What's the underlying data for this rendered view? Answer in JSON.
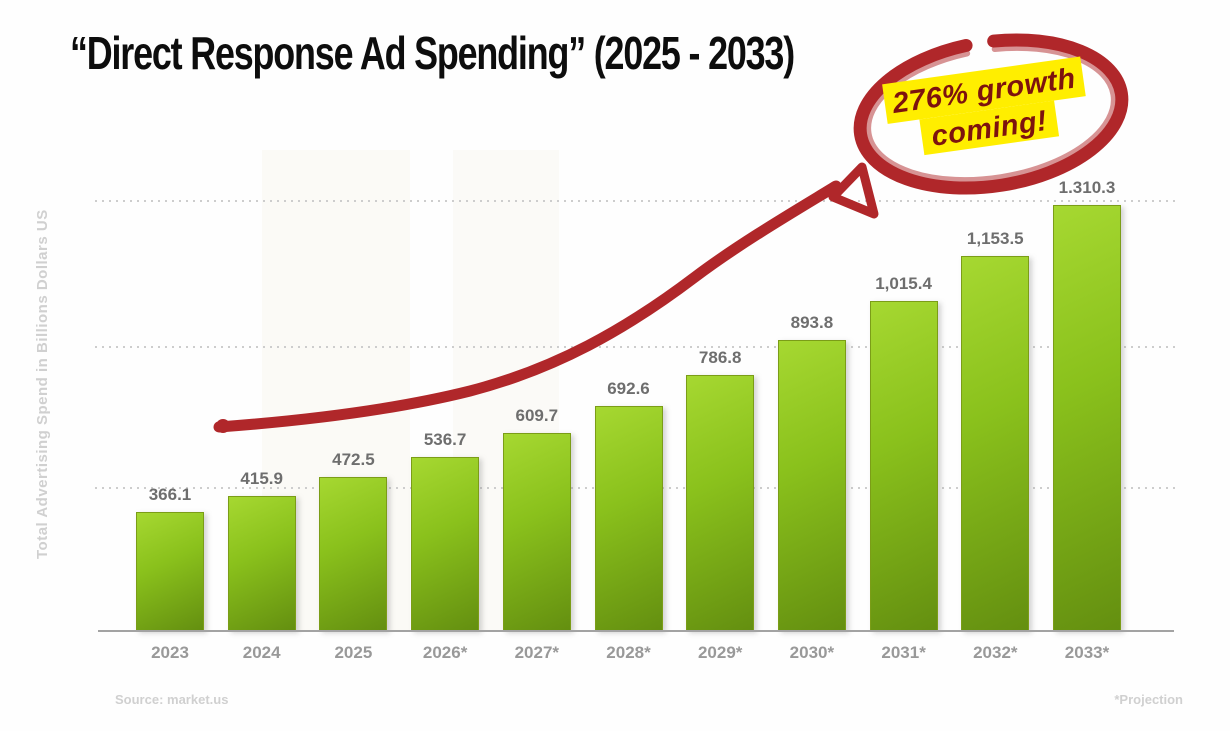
{
  "title": "“Direct Response Ad Spending” (2025 - 2033)",
  "y_axis_label": "Total Advertising Spend in Billions Dollars US",
  "footer": {
    "source": "Source: market.us",
    "projection_note": "*Projection"
  },
  "annotation": {
    "line1": "276% growth",
    "line2": "coming!"
  },
  "colors": {
    "bar_top": "#a6d831",
    "bar_mid": "#8ac11c",
    "bar_bottom": "#648f10",
    "bar_border": "#7b9d17",
    "annotation_red": "#b0272a",
    "annotation_maroon": "#7d130e",
    "highlight_yellow": "#ffee00",
    "value_label": "#6e6e6e",
    "tick_label": "#999999",
    "axis_line": "#a3a3a3",
    "gridline": "#cdcdcd",
    "muted_label": "#d0d0d0",
    "title_color": "#0d0d0d"
  },
  "chart_data": {
    "type": "bar",
    "title": "“Direct Response Ad Spending” (2025 - 2033)",
    "xlabel": "",
    "ylabel": "Total Advertising Spend in Billions Dollars US",
    "categories": [
      "2023",
      "2024",
      "2025",
      "2026*",
      "2027*",
      "2028*",
      "2029*",
      "2030*",
      "2031*",
      "2032*",
      "2033*"
    ],
    "values": [
      366.1,
      415.9,
      472.5,
      536.7,
      609.7,
      692.6,
      786.8,
      893.8,
      1015.4,
      1153.5,
      1310.3
    ],
    "value_labels": [
      "366.1",
      "415.9",
      "472.5",
      "536.7",
      "609.7",
      "692.6",
      "786.8",
      "893.8",
      "1,015.4",
      "1,153.5",
      "1.310.3"
    ],
    "ylim": [
      0,
      1400
    ],
    "grid": "dotted horizontal, 3 lines",
    "legend": "none",
    "annotations": [
      "hand-drawn red curved arrow rising from 2023 toward circled note",
      "red circled note: 276% growth coming!"
    ],
    "projection_marker": "* = projection years 2026-2033"
  }
}
